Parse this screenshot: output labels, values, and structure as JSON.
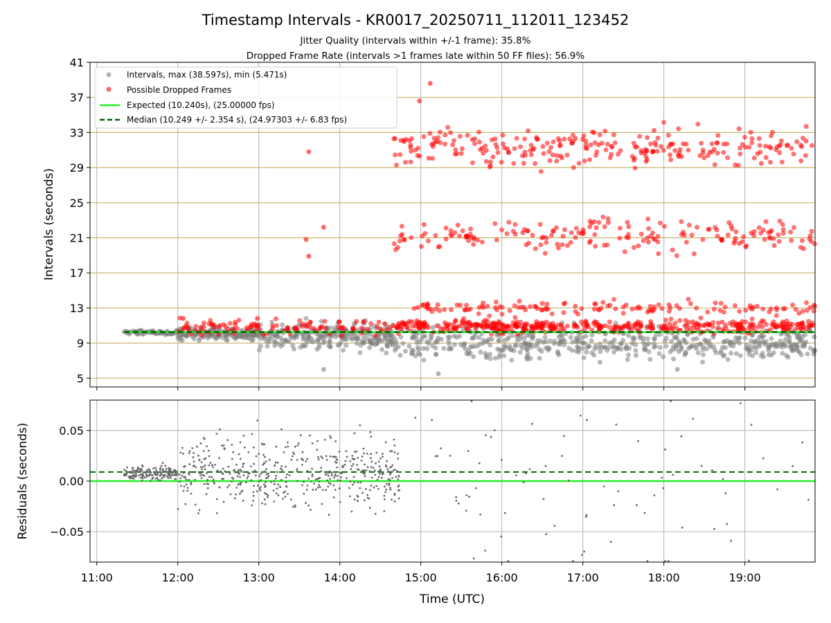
{
  "title": "Timestamp Intervals - KR0017_20250711_112011_123452",
  "subtitle_lines": [
    "Jitter Quality (intervals within +/-1 frame): 35.8%",
    "Dropped Frame Rate (intervals >1 frames late within 50 FF files): 56.9%"
  ],
  "colors": {
    "intervals": "#808080",
    "dropped": "#ff0000",
    "expected": "#22ee22",
    "median": "#006400",
    "hgrid_top": "#c8b46e",
    "grid": "#b0b0b0"
  },
  "chart_data": [
    {
      "type": "scatter",
      "panel": "intervals",
      "xlabel": "",
      "ylabel": "Intervals (seconds)",
      "x_unit": "time of day (UTC)",
      "xlim": [
        "10:55",
        "19:52"
      ],
      "ylim": [
        4,
        41
      ],
      "y_ticks": [
        "5",
        "9",
        "13",
        "17",
        "21",
        "25",
        "29",
        "33",
        "37",
        "41"
      ],
      "grid": "horizontal lines at y ticks; vertical lines at hour ticks",
      "legend_position": "top-left",
      "legend": [
        "Intervals, max (38.597s), min (5.471s)",
        "Possible Dropped Frames",
        "Expected (10.240s), (25.00000 fps)",
        "Median (10.249 +/- 2.354 s), (24.97303 +/- 6.83 fps)"
      ],
      "series": [
        {
          "name": "Intervals, max (38.597s), min (5.471s)",
          "style": "grey circles, semi-transparent",
          "clusters": [
            {
              "x_range": [
                "11:20",
                "12:00"
              ],
              "y_center": 10.2,
              "y_spread": 0.2
            },
            {
              "x_range": [
                "12:00",
                "13:00"
              ],
              "y_center": 10.1,
              "y_spread": 0.6
            },
            {
              "x_range": [
                "13:00",
                "14:40"
              ],
              "y_center": 9.8,
              "y_spread": 1.3
            },
            {
              "x_range": [
                "14:40",
                "19:52"
              ],
              "y_center": 9.0,
              "y_spread": 1.6
            }
          ],
          "notable_points": [
            {
              "x": "15:13",
              "y": 5.5
            },
            {
              "x": "13:48",
              "y": 6.0
            },
            {
              "x": "18:10",
              "y": 6.0
            }
          ]
        },
        {
          "name": "Possible Dropped Frames",
          "style": "red circles, semi-transparent",
          "bands": [
            {
              "x_range": [
                "12:00",
                "14:40"
              ],
              "y_center": 10.8,
              "y_spread": 0.8
            },
            {
              "x_range": [
                "14:40",
                "19:52"
              ],
              "y_center": 10.9,
              "y_spread": 0.6
            },
            {
              "x_range": [
                "14:55",
                "19:52"
              ],
              "y_center": 13.0,
              "y_spread": 0.6
            },
            {
              "x_range": [
                "14:40",
                "19:52"
              ],
              "y_center": 21.3,
              "y_spread": 1.6
            },
            {
              "x_range": [
                "14:40",
                "19:52"
              ],
              "y_center": 31.3,
              "y_spread": 1.8
            }
          ],
          "notable_points": [
            {
              "x": "15:07",
              "y": 38.6
            },
            {
              "x": "14:59",
              "y": 36.6
            },
            {
              "x": "13:37",
              "y": 30.8
            },
            {
              "x": "13:48",
              "y": 22.2
            },
            {
              "x": "13:35",
              "y": 20.8
            },
            {
              "x": "13:37",
              "y": 18.9
            },
            {
              "x": "12:04",
              "y": 11.8
            },
            {
              "x": "12:59",
              "y": 11.8
            }
          ]
        },
        {
          "name": "Expected (10.240s), (25.00000 fps)",
          "style": "solid bright green line",
          "y": 10.24
        },
        {
          "name": "Median (10.249 +/- 2.354 s), (24.97303 +/- 6.83 fps)",
          "style": "dashed dark green line",
          "y": 10.249
        }
      ]
    },
    {
      "type": "scatter",
      "panel": "residuals",
      "xlabel": "Time (UTC)",
      "ylabel": "Residuals (seconds)",
      "x_unit": "time of day (UTC)",
      "xlim": [
        "10:55",
        "19:52"
      ],
      "ylim": [
        -0.08,
        0.08
      ],
      "x_ticks": [
        "11:00",
        "12:00",
        "13:00",
        "14:00",
        "15:00",
        "16:00",
        "17:00",
        "18:00",
        "19:00"
      ],
      "y_ticks": [
        "0.05",
        "0.00",
        "−0.05"
      ],
      "grid": "horizontal and vertical grid lines",
      "series": [
        {
          "name": "",
          "style": "small grey dots",
          "clusters": [
            {
              "x_range": [
                "11:20",
                "12:00"
              ],
              "y_center": 0.008,
              "y_spread": 0.006
            },
            {
              "x_range": [
                "12:00",
                "14:45"
              ],
              "y_center": 0.008,
              "y_spread": 0.03
            },
            {
              "x_range": [
                "14:45",
                "19:52"
              ],
              "y_center": 0.0,
              "y_spread": 0.075
            }
          ]
        },
        {
          "name": "",
          "style": "solid bright green line",
          "y": 0.0
        },
        {
          "name": "",
          "style": "dashed dark green line",
          "y": 0.009
        }
      ]
    }
  ]
}
